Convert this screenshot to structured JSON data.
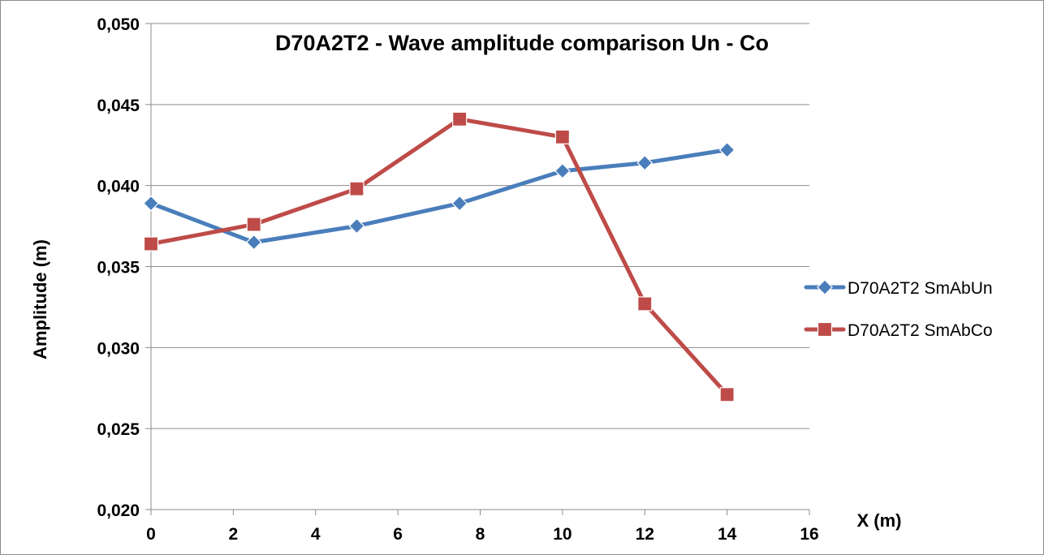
{
  "chart_data": {
    "type": "line",
    "title": "D70A2T2 - Wave amplitude comparison Un - Co",
    "xlabel": "X (m)",
    "ylabel": "Amplitude (m)",
    "xlim": [
      0,
      16
    ],
    "ylim": [
      0.02,
      0.05
    ],
    "x_ticks": [
      0,
      2,
      4,
      6,
      8,
      10,
      12,
      14,
      16
    ],
    "x_tick_labels": [
      "0",
      "2",
      "4",
      "6",
      "8",
      "10",
      "12",
      "14",
      "16"
    ],
    "y_ticks": [
      0.02,
      0.025,
      0.03,
      0.035,
      0.04,
      0.045,
      0.05
    ],
    "y_tick_labels": [
      "0,020",
      "0,025",
      "0,030",
      "0,035",
      "0,040",
      "0,045",
      "0,050"
    ],
    "grid": "horizontal",
    "legend_position": "right",
    "series": [
      {
        "name": "D70A2T2 SmAbUn",
        "color": "#4a7ebb",
        "marker": "diamond",
        "points": [
          [
            0,
            0.0389
          ],
          [
            2.5,
            0.0365
          ],
          [
            5,
            0.0375
          ],
          [
            7.5,
            0.0389
          ],
          [
            10,
            0.0409
          ],
          [
            12,
            0.0414
          ],
          [
            14,
            0.0422
          ]
        ]
      },
      {
        "name": "D70A2T2 SmAbCo",
        "color": "#be4b48",
        "marker": "square",
        "points": [
          [
            0,
            0.0364
          ],
          [
            2.5,
            0.0376
          ],
          [
            5,
            0.0398
          ],
          [
            7.5,
            0.0441
          ],
          [
            10,
            0.043
          ],
          [
            12,
            0.0327
          ],
          [
            14,
            0.0271
          ]
        ]
      }
    ]
  }
}
